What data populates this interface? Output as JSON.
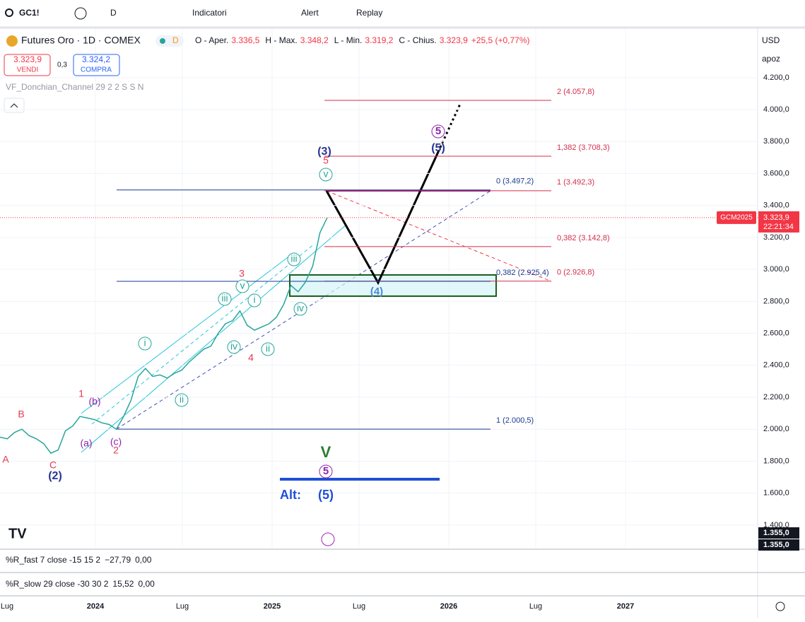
{
  "toolbar": {
    "symbol": "GC1!",
    "interval": "D",
    "items": [
      "Indicatori",
      "Alert",
      "Replay"
    ]
  },
  "legend": {
    "title": "Futures Oro · 1D · COMEX",
    "badge": "D",
    "ohlc": [
      {
        "label": "O - Aper.",
        "value": "3.336,5"
      },
      {
        "label": "H - Max.",
        "value": "3.348,2"
      },
      {
        "label": "L - Min.",
        "value": "3.319,2"
      },
      {
        "label": "C - Chius.",
        "value": "3.323,9"
      }
    ],
    "change": "+25,5 (+0,77%)"
  },
  "trade": {
    "sell_price": "3.323,9",
    "sell": "VENDI",
    "spread": "0,3",
    "buy_price": "3.324,2",
    "buy": "COMPRA"
  },
  "indicator": "VF_Donchian_Channel 29 2 2 S S N",
  "price_axis": {
    "currency": "USD",
    "scale_mode": "apoz",
    "ylim": [
      1258,
      4509
    ],
    "yticks": [
      {
        "value": 4200,
        "label": "4.200,0"
      },
      {
        "value": 4000,
        "label": "4.000,0"
      },
      {
        "value": 3800,
        "label": "3.800,0"
      },
      {
        "value": 3600,
        "label": "3.600,0"
      },
      {
        "value": 3400,
        "label": "3.400,0"
      },
      {
        "value": 3200,
        "label": "3.200,0"
      },
      {
        "value": 3000,
        "label": "3.000,0"
      },
      {
        "value": 2800,
        "label": "2.800,0"
      },
      {
        "value": 2600,
        "label": "2.600,0"
      },
      {
        "value": 2400,
        "label": "2.400,0"
      },
      {
        "value": 2200,
        "label": "2.200,0"
      },
      {
        "value": 2000,
        "label": "2.000,0"
      },
      {
        "value": 1800,
        "label": "1.800,0"
      },
      {
        "value": 1600,
        "label": "1.600,0"
      },
      {
        "value": 1400,
        "label": "1.400,0"
      }
    ]
  },
  "current_price": {
    "symbol": "GCM2025",
    "value": 3323.9,
    "label": "3.323,9",
    "countdown": "22:21:34"
  },
  "extra_labels": [
    "1.355,0",
    "1.355,0"
  ],
  "time_axis": [
    "Lug",
    "2024",
    "Lug",
    "2025",
    "Lug",
    "2026",
    "Lug",
    "2027"
  ],
  "close_series": [
    1950,
    1940,
    1980,
    2000,
    1960,
    1940,
    1910,
    1850,
    1870,
    1990,
    2020,
    2080,
    2070,
    2060,
    2040,
    2030,
    2000,
    2080,
    2180,
    2330,
    2380,
    2330,
    2340,
    2320,
    2350,
    2370,
    2420,
    2460,
    2500,
    2520,
    2600,
    2660,
    2680,
    2740,
    2650,
    2620,
    2640,
    2660,
    2700,
    2780,
    2900,
    2860,
    2920,
    3020,
    3230,
    3323.9
  ],
  "fib_levels": [
    {
      "value": 4057.8,
      "label": "2 (4.057,8)"
    },
    {
      "value": 3708.3,
      "label": "1,382 (3.708,3)"
    },
    {
      "value": 3492.3,
      "label": "1 (3.492,3)"
    },
    {
      "value": 3142.8,
      "label": "0,382 (3.142,8)"
    },
    {
      "value": 2926.8,
      "label": "0 (2.926,8)"
    }
  ],
  "fib_levels_2": [
    {
      "value": 3497.2,
      "label": "0 (3.497,2)"
    },
    {
      "value": 2925.4,
      "label": "0,382 (2.925,4)"
    },
    {
      "value": 2000.5,
      "label": "1 (2.000,5)"
    }
  ],
  "wave_labels": [
    "A",
    "B",
    "C",
    "1",
    "2",
    "3",
    "4",
    "5",
    "(2)",
    "(3)",
    "(5)",
    "(4)",
    "(a)",
    "(b)",
    "(c)",
    "5",
    "5",
    "i",
    "ii",
    "iii",
    "iv",
    "v",
    "i",
    "ii",
    "iii",
    "iv",
    "v",
    "V",
    "Alt:",
    "(5)"
  ],
  "panels": [
    {
      "title": "%R_fast 7 close -15 15 2",
      "values": [
        "−27,79",
        "0,00"
      ]
    },
    {
      "title": "%R_slow 29 close -30 30 2",
      "values": [
        "15,52",
        "0,00"
      ]
    }
  ]
}
